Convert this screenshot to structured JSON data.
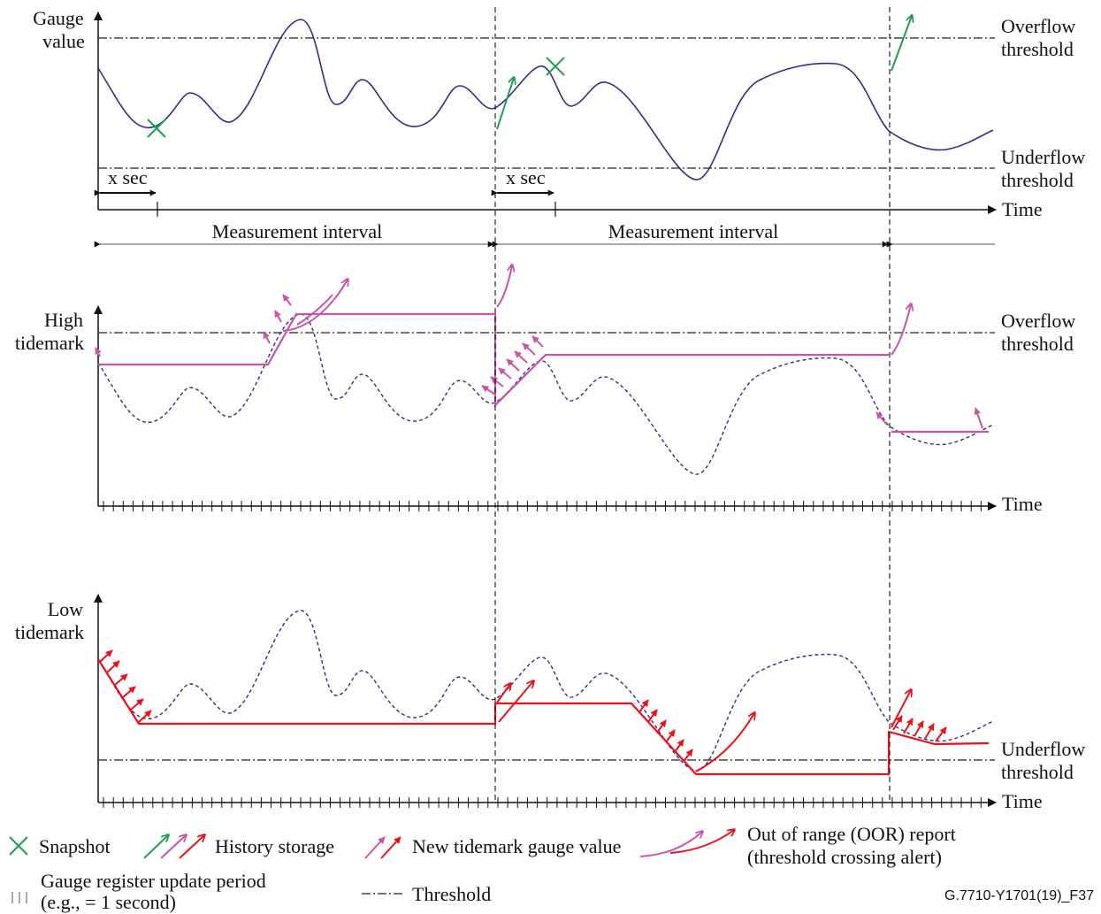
{
  "panel1": {
    "ylabel": [
      "Gauge",
      "value"
    ],
    "overflow": [
      "Overflow",
      "threshold"
    ],
    "underflow": [
      "Underflow",
      "threshold"
    ],
    "time": "Time",
    "xsec1": "x sec",
    "xsec2": "x sec",
    "interval1": "Measurement interval",
    "interval2": "Measurement interval"
  },
  "panel2": {
    "ylabel": [
      "High",
      "tidemark"
    ],
    "overflow": [
      "Overflow",
      "threshold"
    ],
    "time": "Time"
  },
  "panel3": {
    "ylabel": [
      "Low",
      "tidemark"
    ],
    "underflow": [
      "Underflow",
      "threshold"
    ],
    "time": "Time"
  },
  "legend": {
    "snapshot": "Snapshot",
    "history": "History storage",
    "new_tidemark": "New tidemark gauge value",
    "oor": [
      "Out of range (OOR) report",
      "(threshold crossing alert)"
    ],
    "update_period": [
      "Gauge register update period",
      "(e.g., = 1 second)"
    ],
    "threshold": "Threshold",
    "code": "G.7710-Y1701(19)_F37"
  },
  "colors": {
    "gauge": "#2e2e8c",
    "snapshot": "#1e9e52",
    "history_green": "#1e9e52",
    "high_tidemark": "#c855a8",
    "low_tidemark": "#e8121a",
    "threshold": "#222222"
  }
}
